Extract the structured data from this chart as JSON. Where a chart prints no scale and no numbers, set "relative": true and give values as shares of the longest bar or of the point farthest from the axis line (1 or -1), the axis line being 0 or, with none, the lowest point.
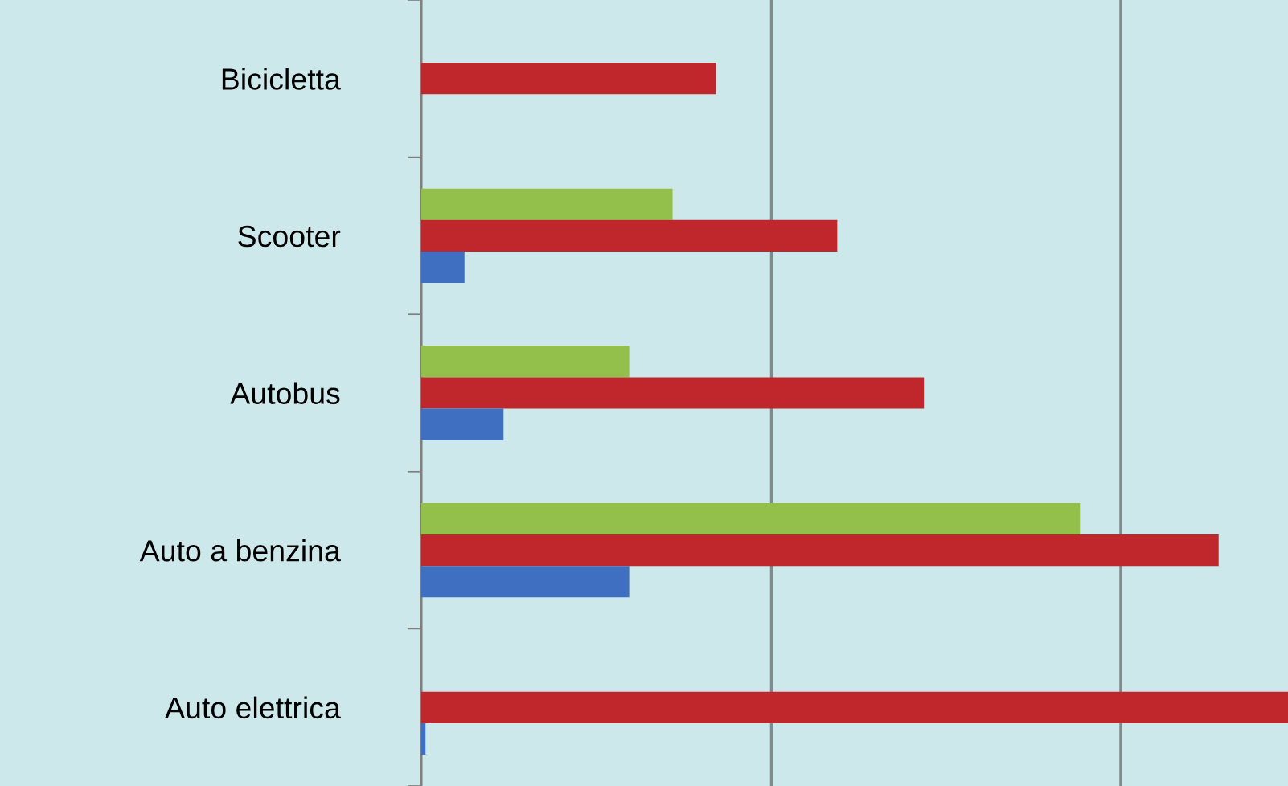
{
  "chart_data": {
    "type": "bar",
    "orientation": "horizontal",
    "relative": true,
    "legend": false,
    "ref_lines": [
      {
        "axis": "x",
        "value": 0.404,
        "color": "#7f8c8d"
      },
      {
        "axis": "x",
        "value": 0.807,
        "color": "#7f8c8d"
      }
    ],
    "categories": [
      "Bicicletta",
      "Scooter",
      "Autobus",
      "Auto a benzina",
      "Auto elettrica"
    ],
    "series": [
      {
        "color": "#92c04a",
        "values": [
          null,
          0.29,
          0.24,
          0.76,
          null
        ]
      },
      {
        "color": "#c0272d",
        "values": [
          0.34,
          0.48,
          0.58,
          0.92,
          1.0
        ]
      },
      {
        "color": "#3f6fc0",
        "values": [
          null,
          0.05,
          0.095,
          0.24,
          0.005
        ]
      }
    ]
  }
}
